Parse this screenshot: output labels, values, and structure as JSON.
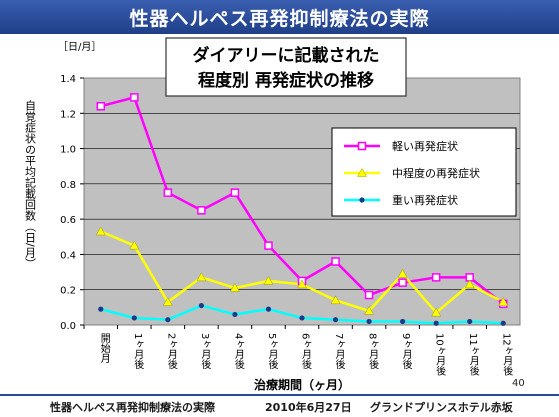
{
  "header": {
    "title": "性器ヘルペス再発抑制療法の実際"
  },
  "footer": {
    "left": "性器ヘルペス再発抑制療法の実際",
    "date": "2010年6月27日",
    "venue": "グランドプリンスホテル赤坂"
  },
  "page_number": "40",
  "chart_data": {
    "type": "line",
    "title_line1": "ダイアリーに記載された",
    "title_line2": "程度別 再発症状の推移",
    "unit": "［日/月］",
    "ylabel": "自覚症状の平均記載回数（日/月）",
    "xlabel": "治療期間（ヶ月）",
    "ylim": [
      0,
      1.4
    ],
    "yticks": [
      "0.0",
      "0.2",
      "0.4",
      "0.6",
      "0.8",
      "1.0",
      "1.2",
      "1.4"
    ],
    "grid": true,
    "legend_position": "top-right",
    "categories": [
      "開始月",
      "1ヶ月後",
      "2ヶ月後",
      "3ヶ月後",
      "4ヶ月後",
      "5ヶ月後",
      "6ヶ月後",
      "7ヶ月後",
      "8ヶ月後",
      "9ヶ月後",
      "10ヶ月後",
      "11ヶ月後",
      "12ヶ月後"
    ],
    "series": [
      {
        "name": "軽い再発症状",
        "color": "#ff00ff",
        "marker": "square",
        "values": [
          1.24,
          1.29,
          0.75,
          0.65,
          0.75,
          0.45,
          0.25,
          0.36,
          0.17,
          0.24,
          0.27,
          0.27,
          0.12
        ]
      },
      {
        "name": "中程度の再発症状",
        "color": "#ffff00",
        "marker": "triangle",
        "values": [
          0.53,
          0.45,
          0.13,
          0.27,
          0.21,
          0.25,
          0.23,
          0.14,
          0.08,
          0.29,
          0.07,
          0.23,
          0.13
        ]
      },
      {
        "name": "重い再発症状",
        "color": "#00ffff",
        "marker": "circle",
        "values": [
          0.09,
          0.04,
          0.03,
          0.11,
          0.06,
          0.09,
          0.04,
          0.03,
          0.02,
          0.02,
          0.01,
          0.02,
          0.01
        ]
      }
    ]
  }
}
